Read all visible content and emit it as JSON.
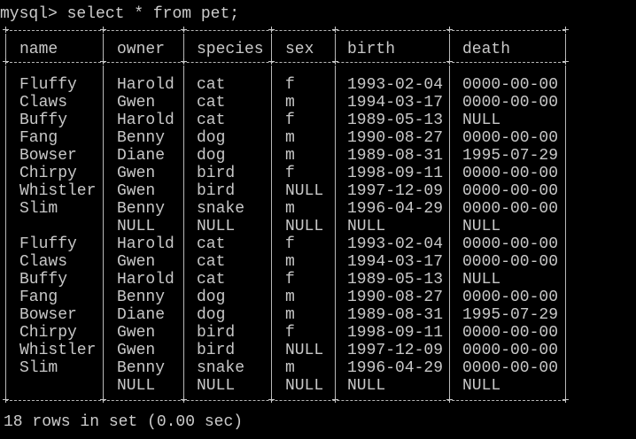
{
  "terminal": {
    "prompt": "mysql>",
    "command": "select * from pet;"
  },
  "table": {
    "columns": [
      "name",
      "owner",
      "species",
      "sex",
      "birth",
      "death"
    ],
    "rows": [
      [
        "Fluffy",
        "Harold",
        "cat",
        "f",
        "1993-02-04",
        "0000-00-00"
      ],
      [
        "Claws",
        "Gwen",
        "cat",
        "m",
        "1994-03-17",
        "0000-00-00"
      ],
      [
        "Buffy",
        "Harold",
        "cat",
        "f",
        "1989-05-13",
        "NULL"
      ],
      [
        "Fang",
        "Benny",
        "dog",
        "m",
        "1990-08-27",
        "0000-00-00"
      ],
      [
        "Bowser",
        "Diane",
        "dog",
        "m",
        "1989-08-31",
        "1995-07-29"
      ],
      [
        "Chirpy",
        "Gwen",
        "bird",
        "f",
        "1998-09-11",
        "0000-00-00"
      ],
      [
        "Whistler",
        "Gwen",
        "bird",
        "NULL",
        "1997-12-09",
        "0000-00-00"
      ],
      [
        "Slim",
        "Benny",
        "snake",
        "m",
        "1996-04-29",
        "0000-00-00"
      ],
      [
        "",
        "NULL",
        "NULL",
        "NULL",
        "NULL",
        "NULL"
      ],
      [
        "Fluffy",
        "Harold",
        "cat",
        "f",
        "1993-02-04",
        "0000-00-00"
      ],
      [
        "Claws",
        "Gwen",
        "cat",
        "m",
        "1994-03-17",
        "0000-00-00"
      ],
      [
        "Buffy",
        "Harold",
        "cat",
        "f",
        "1989-05-13",
        "NULL"
      ],
      [
        "Fang",
        "Benny",
        "dog",
        "m",
        "1990-08-27",
        "0000-00-00"
      ],
      [
        "Bowser",
        "Diane",
        "dog",
        "m",
        "1989-08-31",
        "1995-07-29"
      ],
      [
        "Chirpy",
        "Gwen",
        "bird",
        "f",
        "1998-09-11",
        "0000-00-00"
      ],
      [
        "Whistler",
        "Gwen",
        "bird",
        "NULL",
        "1997-12-09",
        "0000-00-00"
      ],
      [
        "Slim",
        "Benny",
        "snake",
        "m",
        "1996-04-29",
        "0000-00-00"
      ],
      [
        "",
        "NULL",
        "NULL",
        "NULL",
        "NULL",
        "NULL"
      ]
    ]
  },
  "status": "18 rows in set (0.00 sec)",
  "colors": {
    "background": "#000000",
    "text": "#c8c8c8"
  }
}
